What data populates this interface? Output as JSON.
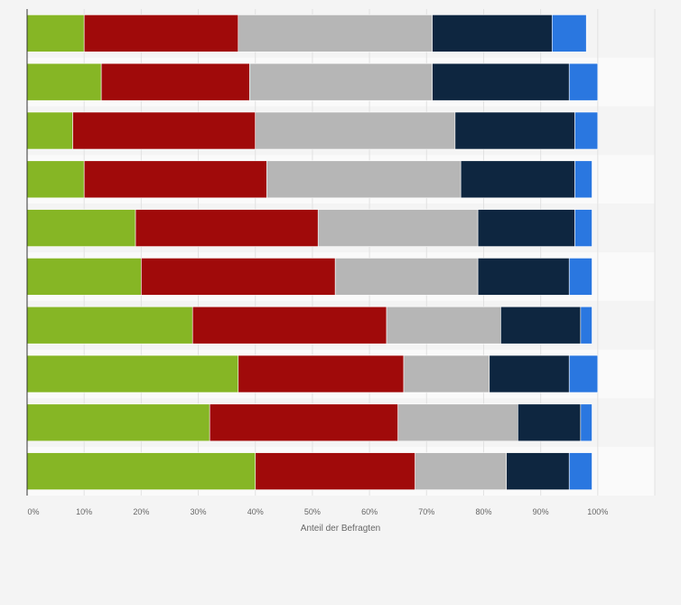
{
  "chart_data": {
    "type": "bar",
    "orientation": "horizontal",
    "stacked": true,
    "xlabel": "Anteil der Befragten",
    "xlim": [
      0,
      110
    ],
    "x_ticks": [
      "0%",
      "10%",
      "20%",
      "30%",
      "40%",
      "50%",
      "60%",
      "70%",
      "80%",
      "90%",
      "100%"
    ],
    "grid": true,
    "legend": "none",
    "categories": [
      "",
      "",
      "",
      "",
      "",
      "",
      "",
      "",
      "",
      ""
    ],
    "series": [
      {
        "color": "#86b625",
        "values": [
          10,
          13,
          8,
          10,
          19,
          20,
          29,
          37,
          32,
          40
        ]
      },
      {
        "color": "#a00a0a",
        "values": [
          27,
          26,
          32,
          32,
          32,
          34,
          34,
          29,
          33,
          28
        ]
      },
      {
        "color": "#b6b6b6",
        "values": [
          34,
          32,
          35,
          34,
          28,
          25,
          20,
          15,
          21,
          16
        ]
      },
      {
        "color": "#0e2640",
        "values": [
          21,
          24,
          21,
          20,
          17,
          16,
          14,
          14,
          11,
          11
        ]
      },
      {
        "color": "#2a77e0",
        "values": [
          6,
          5,
          4,
          3,
          3,
          4,
          2,
          5,
          2,
          4
        ]
      }
    ]
  }
}
